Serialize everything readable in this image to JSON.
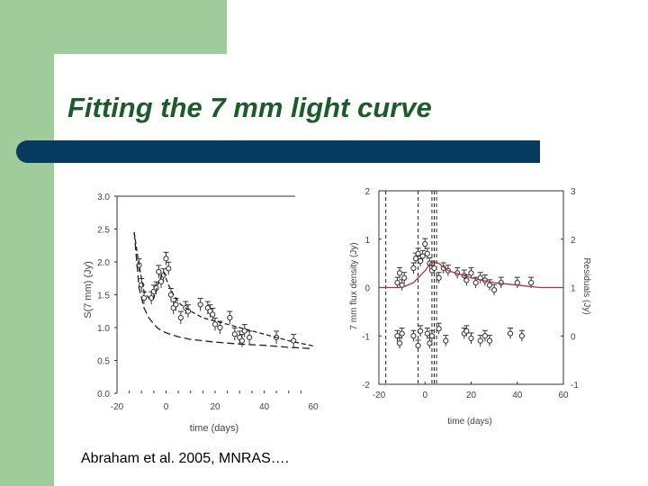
{
  "slide": {
    "title": "Fitting the 7 mm light curve",
    "caption": "Abraham et al. 2005, MNRAS…."
  },
  "colors": {
    "accent_green": "#9fcc9a",
    "title_green": "#1d5a2c",
    "bar_navy": "#063a5e",
    "fit_red": "#b0303a"
  },
  "chart_data": [
    {
      "type": "scatter",
      "title": "",
      "xlabel": "time (days)",
      "ylabel": "S(7 mm) (Jy)",
      "xlim": [
        -20,
        60
      ],
      "ylim": [
        0.0,
        3.0
      ],
      "xticks": [
        "-20",
        "0",
        "20",
        "40",
        "60"
      ],
      "yticks": [
        "0.0",
        "0.5",
        "1.0",
        "1.5",
        "2.0",
        "2.5",
        "3.0"
      ],
      "series": [
        {
          "style": "points",
          "x": [
            -11,
            -10,
            -9,
            -6,
            -5,
            -4,
            -3,
            -2,
            -1,
            0,
            1,
            2,
            3,
            4,
            6,
            8,
            9,
            14,
            17,
            18,
            19,
            20,
            22,
            26,
            28,
            30,
            31,
            32,
            34,
            45,
            52
          ],
          "y": [
            1.95,
            1.65,
            1.45,
            1.45,
            1.55,
            1.6,
            1.85,
            1.7,
            1.8,
            2.05,
            1.9,
            1.5,
            1.3,
            1.35,
            1.15,
            1.3,
            1.25,
            1.35,
            1.3,
            1.25,
            1.2,
            1.05,
            1.0,
            1.15,
            0.9,
            0.85,
            0.8,
            0.95,
            0.85,
            0.85,
            0.8
          ]
        },
        {
          "style": "dashed-upper",
          "x": [
            -13,
            -11,
            -9,
            -7,
            -5,
            -3,
            -1,
            1,
            3,
            6,
            10,
            15,
            20,
            30,
            40,
            50,
            60
          ],
          "y": [
            2.45,
            1.95,
            1.55,
            1.45,
            1.45,
            1.7,
            1.85,
            1.65,
            1.5,
            1.35,
            1.25,
            1.15,
            1.1,
            1.0,
            0.9,
            0.8,
            0.72
          ]
        },
        {
          "style": "dashed-lower",
          "x": [
            -13,
            -11,
            -9,
            -7,
            -5,
            -3,
            0,
            5,
            10,
            20,
            30,
            40,
            50,
            60
          ],
          "y": [
            2.45,
            1.6,
            1.3,
            1.15,
            1.05,
            0.98,
            0.92,
            0.86,
            0.82,
            0.78,
            0.75,
            0.73,
            0.7,
            0.68
          ]
        }
      ]
    },
    {
      "type": "scatter",
      "title": "",
      "xlabel": "time (days)",
      "ylabel": "7 mm flux density (Jy)",
      "y2label": "Residuals (Jy)",
      "xlim": [
        -20,
        60
      ],
      "ylim": [
        -2,
        2
      ],
      "y2lim": [
        -1,
        3
      ],
      "xticks": [
        "-20",
        "0",
        "20",
        "40",
        "60"
      ],
      "yticks": [
        "-2",
        "-1",
        "0",
        "1",
        "2"
      ],
      "y2ticks": [
        "-1",
        "0",
        "1",
        "2",
        "3"
      ],
      "vlines_x": [
        -17,
        -3,
        3,
        4,
        5
      ],
      "series": [
        {
          "style": "upper-points",
          "x": [
            -12,
            -11,
            -10,
            -9,
            -5,
            -4,
            -3,
            -2,
            -1,
            0,
            1,
            2,
            3,
            4,
            6,
            8,
            10,
            14,
            17,
            18,
            20,
            22,
            24,
            26,
            28,
            30,
            33,
            40,
            46
          ],
          "y": [
            0.1,
            0.3,
            0.05,
            0.2,
            0.4,
            0.6,
            0.7,
            0.55,
            0.65,
            0.9,
            0.7,
            0.5,
            0.35,
            0.4,
            0.2,
            0.4,
            0.35,
            0.3,
            0.25,
            0.15,
            0.3,
            0.1,
            0.2,
            0.15,
            0.05,
            -0.05,
            0.1,
            0.1,
            0.1
          ]
        },
        {
          "style": "lower-points",
          "x": [
            -12,
            -11,
            -10,
            -5,
            -3,
            -2,
            1,
            2,
            3,
            6,
            9,
            17,
            18,
            20,
            24,
            26,
            28,
            37,
            42
          ],
          "y": [
            -1.0,
            -1.15,
            -0.95,
            -1.0,
            -1.2,
            -0.9,
            -0.95,
            -1.15,
            -1.0,
            -0.85,
            -1.1,
            -0.95,
            -0.9,
            -1.05,
            -1.1,
            -1.0,
            -1.1,
            -0.95,
            -1.0
          ]
        },
        {
          "style": "fit-line",
          "x": [
            -20,
            -10,
            -5,
            0,
            3,
            6,
            10,
            20,
            30,
            40,
            50,
            60
          ],
          "y": [
            0.0,
            0.0,
            0.1,
            0.35,
            0.55,
            0.5,
            0.35,
            0.2,
            0.1,
            0.05,
            0.0,
            0.0
          ]
        }
      ]
    }
  ]
}
